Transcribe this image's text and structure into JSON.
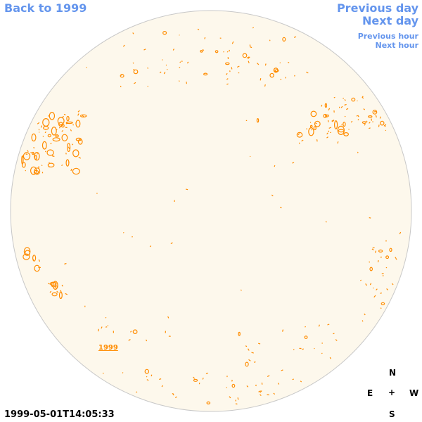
{
  "nav": {
    "back_label": "Back to 1999",
    "prev_day_label": "Previous day",
    "next_day_label": "Next day",
    "prev_hour_label": "Previous hour",
    "next_hour_label": "Next hour"
  },
  "disk": {
    "fill_color": "#fdf8ec",
    "feature_color": "#ff8c00",
    "year_label": "1999"
  },
  "timestamp": "1999-05-01T14:05:33",
  "compass": {
    "north": "N",
    "east": "E",
    "center": "+",
    "west": "W",
    "south": "S"
  }
}
